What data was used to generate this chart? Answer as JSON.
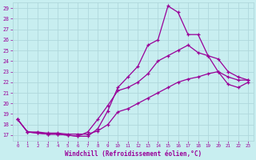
{
  "xlabel": "Windchill (Refroidissement éolien,°C)",
  "bg_color": "#c8eef0",
  "grid_color": "#b0d8dc",
  "line_color": "#990099",
  "xlim": [
    -0.5,
    23.5
  ],
  "ylim": [
    16.5,
    29.5
  ],
  "yticks": [
    17,
    18,
    19,
    20,
    21,
    22,
    23,
    24,
    25,
    26,
    27,
    28,
    29
  ],
  "xticks": [
    0,
    1,
    2,
    3,
    4,
    5,
    6,
    7,
    8,
    9,
    10,
    11,
    12,
    13,
    14,
    15,
    16,
    17,
    18,
    19,
    20,
    21,
    22,
    23
  ],
  "line1_x": [
    0,
    1,
    2,
    3,
    4,
    5,
    6,
    7,
    8,
    9,
    10,
    11,
    12,
    13,
    14,
    15,
    16,
    17,
    18,
    19,
    20,
    21,
    22,
    23
  ],
  "line1_y": [
    18.5,
    17.3,
    17.2,
    17.1,
    17.1,
    17.0,
    16.9,
    16.9,
    17.6,
    19.3,
    21.5,
    22.5,
    23.5,
    25.5,
    26.0,
    29.2,
    28.6,
    26.5,
    26.5,
    24.5,
    23.0,
    22.5,
    22.2,
    22.2
  ],
  "line2_x": [
    0,
    1,
    2,
    3,
    4,
    5,
    6,
    7,
    8,
    9,
    10,
    11,
    12,
    13,
    14,
    15,
    16,
    17,
    18,
    19,
    20,
    21,
    22,
    23
  ],
  "line2_y": [
    18.5,
    17.3,
    17.2,
    17.1,
    17.1,
    17.0,
    16.9,
    17.3,
    18.5,
    19.8,
    21.2,
    21.5,
    22.0,
    22.8,
    24.0,
    24.5,
    25.0,
    25.5,
    24.8,
    24.5,
    24.2,
    23.0,
    22.5,
    22.2
  ],
  "line3_x": [
    0,
    1,
    2,
    3,
    4,
    5,
    6,
    7,
    8,
    9,
    10,
    11,
    12,
    13,
    14,
    15,
    16,
    17,
    18,
    19,
    20,
    21,
    22,
    23
  ],
  "line3_y": [
    18.5,
    17.3,
    17.3,
    17.2,
    17.2,
    17.1,
    17.1,
    17.1,
    17.4,
    18.0,
    19.2,
    19.5,
    20.0,
    20.5,
    21.0,
    21.5,
    22.0,
    22.3,
    22.5,
    22.8,
    23.0,
    21.8,
    21.5,
    22.0
  ]
}
